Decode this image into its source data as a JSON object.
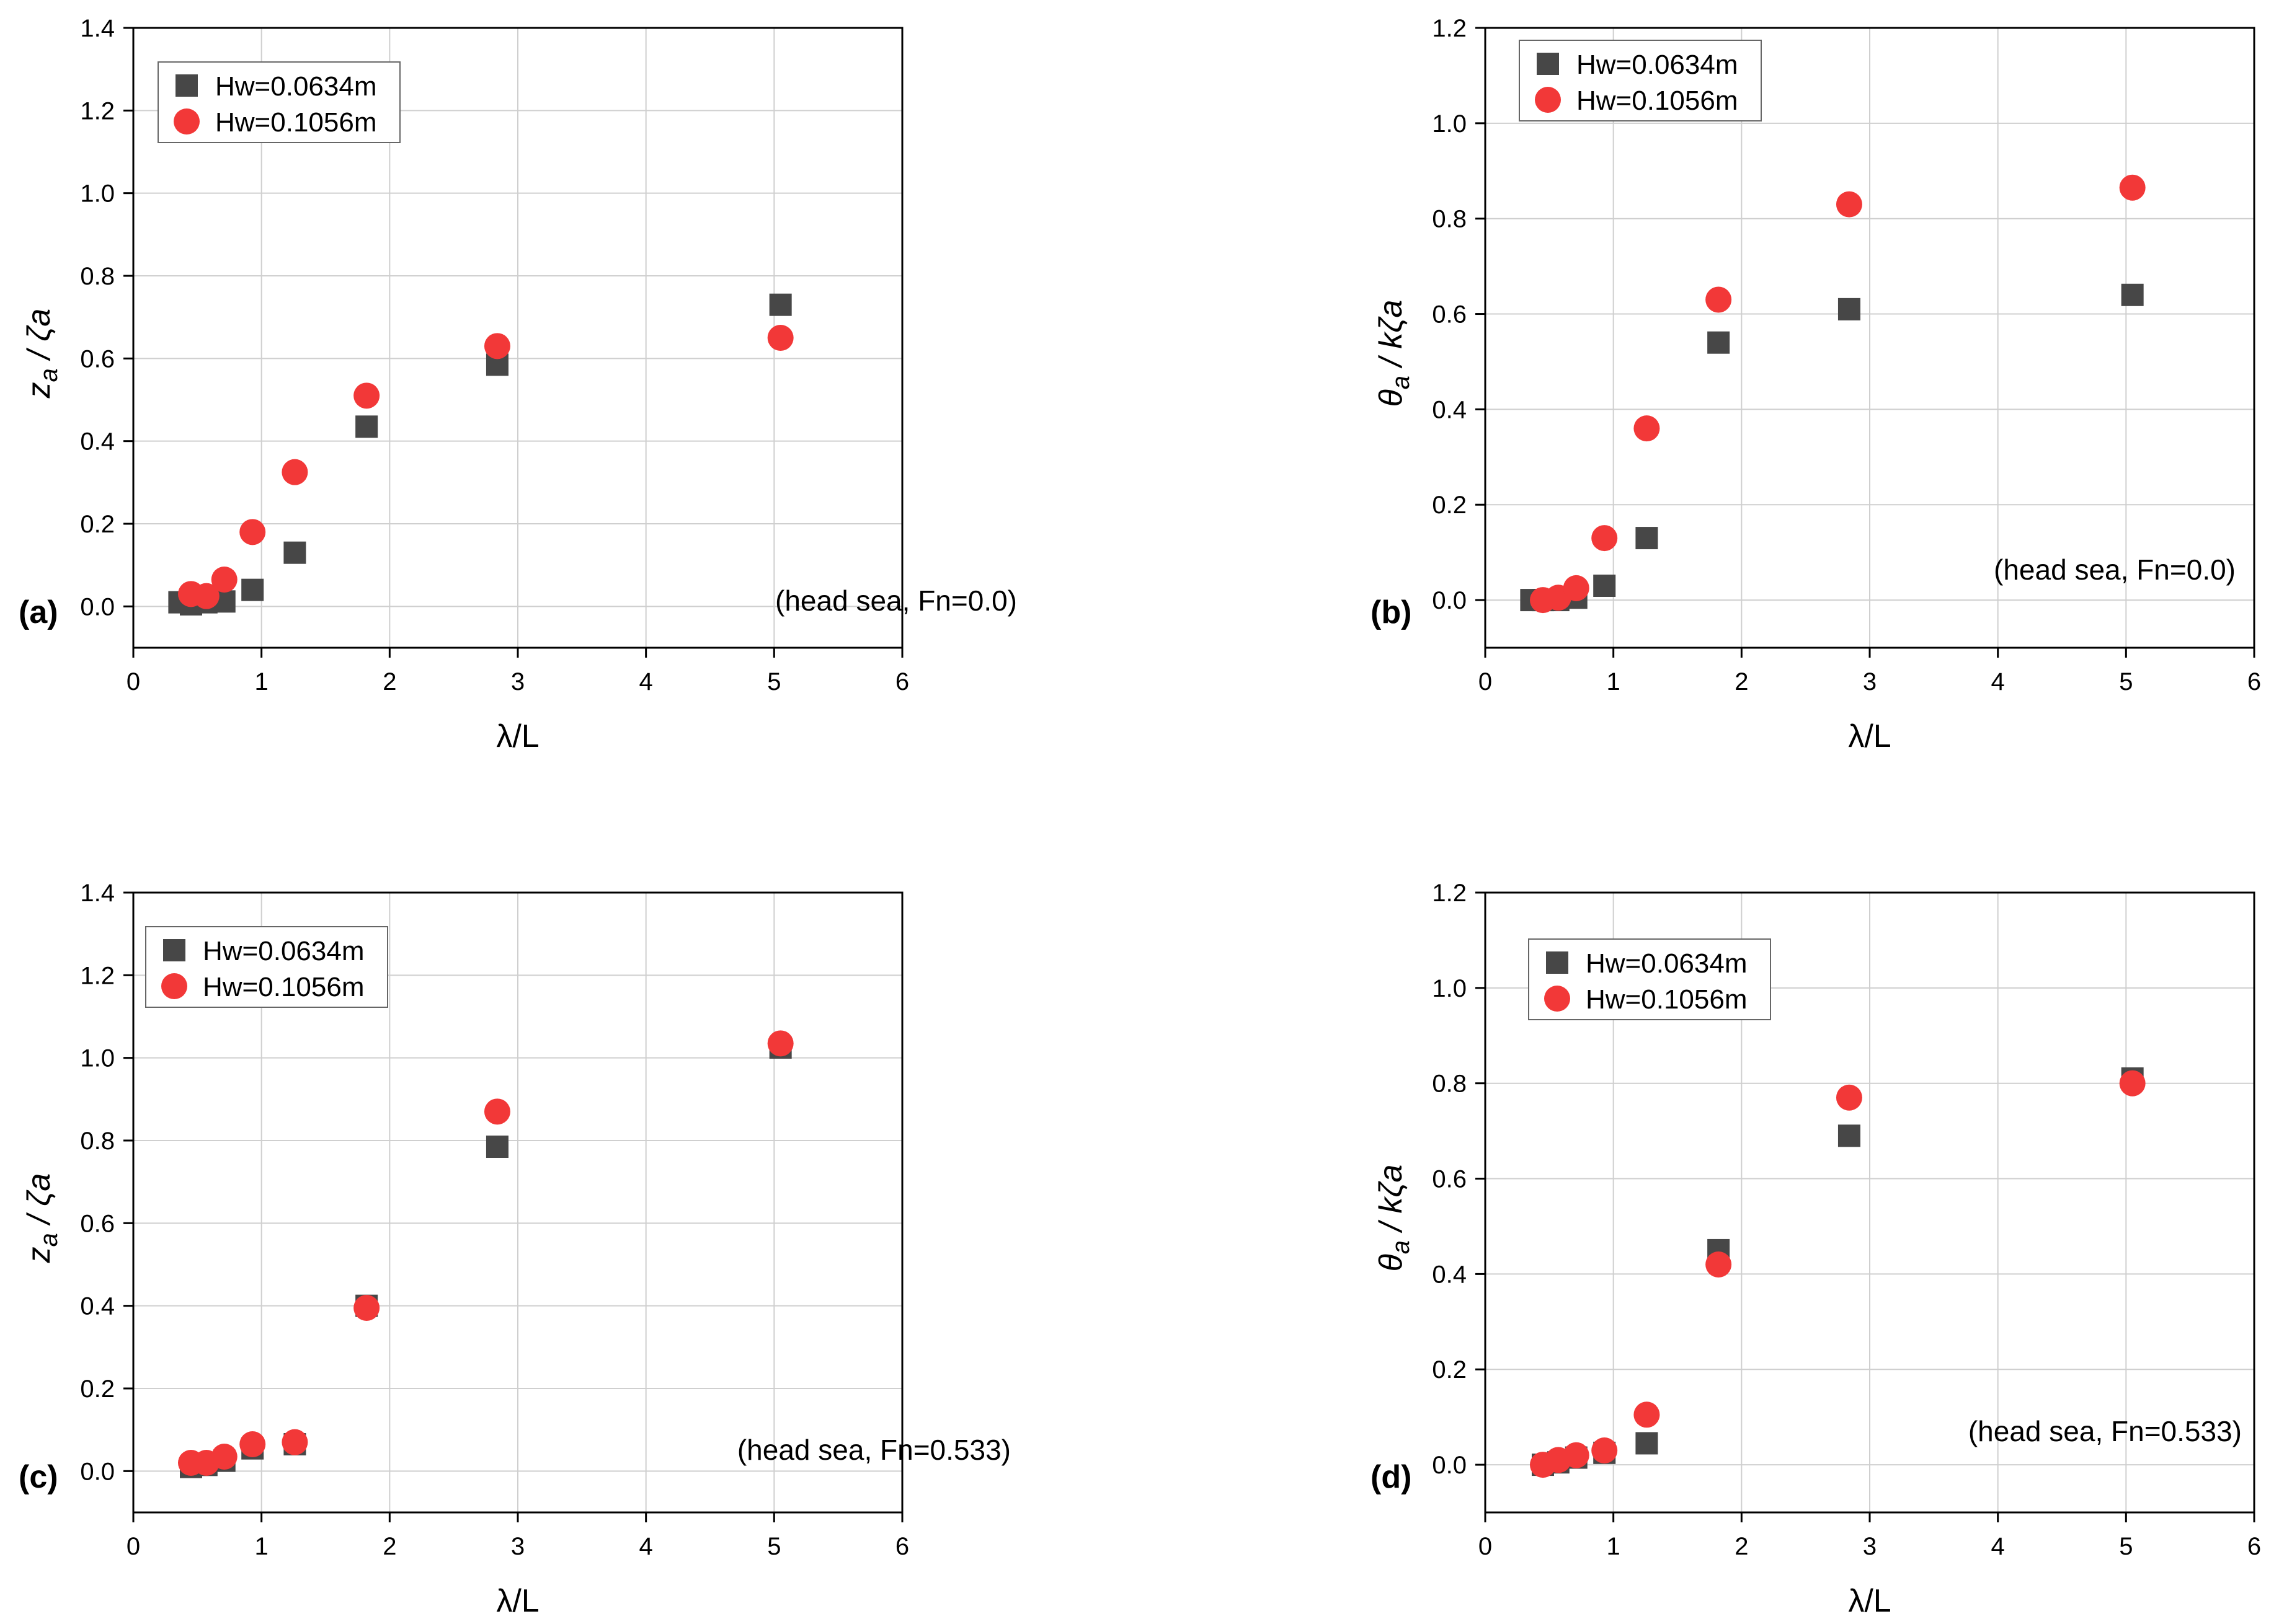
{
  "colors": {
    "series_a": "#474747",
    "series_b": "#f23838",
    "grid": "#cfcfcf",
    "axis": "#000000"
  },
  "chart_data": [
    {
      "type": "scatter",
      "panel_tag": "(a)",
      "annotation": "(head sea, Fn=0.0)",
      "xlabel": "λ/L",
      "ylabel_main": "z",
      "ylabel_sub": "a",
      "ylabel_tail": " / ζa",
      "xlim": [
        0,
        6
      ],
      "ylim": [
        -0.1,
        1.4
      ],
      "xticks": [
        0,
        1,
        2,
        3,
        4,
        5,
        6
      ],
      "xtick_labels": [
        "0",
        "1",
        "2",
        "3",
        "4",
        "5",
        "6"
      ],
      "yticks": [
        0,
        0.2,
        0.4,
        0.6,
        0.8,
        1.0,
        1.2,
        1.4
      ],
      "ytick_labels": [
        "0.0",
        "0.2",
        "0.4",
        "0.6",
        "0.8",
        "1.0",
        "1.2",
        "1.4"
      ],
      "legend_position": "top-left",
      "series": [
        {
          "name": "Hw=0.0634m",
          "marker": "square",
          "x": [
            0.36,
            0.45,
            0.57,
            0.71,
            0.93,
            1.26,
            1.82,
            2.84,
            5.05
          ],
          "y": [
            0.01,
            0.005,
            0.01,
            0.012,
            0.04,
            0.13,
            0.435,
            0.585,
            0.73
          ]
        },
        {
          "name": "Hw=0.1056m",
          "marker": "circle",
          "x": [
            0.45,
            0.57,
            0.71,
            0.93,
            1.26,
            1.82,
            2.84,
            5.05
          ],
          "y": [
            0.03,
            0.025,
            0.065,
            0.18,
            0.325,
            0.51,
            0.63,
            0.65
          ]
        }
      ]
    },
    {
      "type": "scatter",
      "panel_tag": "(b)",
      "annotation": "(head sea, Fn=0.0)",
      "xlabel": "λ/L",
      "ylabel_main": "θ",
      "ylabel_sub": "a",
      "ylabel_tail": " / kζa",
      "xlim": [
        0,
        6
      ],
      "ylim": [
        -0.1,
        1.2
      ],
      "xticks": [
        0,
        1,
        2,
        3,
        4,
        5,
        6
      ],
      "xtick_labels": [
        "0",
        "1",
        "2",
        "3",
        "4",
        "5",
        "6"
      ],
      "yticks": [
        0,
        0.2,
        0.4,
        0.6,
        0.8,
        1.0,
        1.2
      ],
      "ytick_labels": [
        "0.0",
        "0.2",
        "0.4",
        "0.6",
        "0.8",
        "1.0",
        "1.2"
      ],
      "legend_position": "top-left",
      "series": [
        {
          "name": "Hw=0.0634m",
          "marker": "square",
          "x": [
            0.36,
            0.45,
            0.57,
            0.71,
            0.93,
            1.26,
            1.82,
            2.84,
            5.05
          ],
          "y": [
            0.0,
            0.0,
            0.0,
            0.005,
            0.03,
            0.13,
            0.54,
            0.61,
            0.64
          ]
        },
        {
          "name": "Hw=0.1056m",
          "marker": "circle",
          "x": [
            0.45,
            0.57,
            0.71,
            0.93,
            1.26,
            1.82,
            2.84,
            5.05
          ],
          "y": [
            0.0,
            0.005,
            0.025,
            0.13,
            0.36,
            0.63,
            0.83,
            0.865
          ]
        }
      ]
    },
    {
      "type": "scatter",
      "panel_tag": "(c)",
      "annotation": "(head sea, Fn=0.533)",
      "xlabel": "λ/L",
      "ylabel_main": "z",
      "ylabel_sub": "a",
      "ylabel_tail": " / ζa",
      "xlim": [
        0,
        6
      ],
      "ylim": [
        -0.1,
        1.4
      ],
      "xticks": [
        0,
        1,
        2,
        3,
        4,
        5,
        6
      ],
      "xtick_labels": [
        "0",
        "1",
        "2",
        "3",
        "4",
        "5",
        "6"
      ],
      "yticks": [
        0,
        0.2,
        0.4,
        0.6,
        0.8,
        1.0,
        1.2,
        1.4
      ],
      "ytick_labels": [
        "0.0",
        "0.2",
        "0.4",
        "0.6",
        "0.8",
        "1.0",
        "1.2",
        "1.4"
      ],
      "legend_position": "top-left",
      "series": [
        {
          "name": "Hw=0.0634m",
          "marker": "square",
          "x": [
            0.45,
            0.57,
            0.71,
            0.93,
            1.26,
            1.82,
            2.84,
            5.05
          ],
          "y": [
            0.01,
            0.015,
            0.025,
            0.055,
            0.065,
            0.4,
            0.785,
            1.025
          ]
        },
        {
          "name": "Hw=0.1056m",
          "marker": "circle",
          "x": [
            0.45,
            0.57,
            0.71,
            0.93,
            1.26,
            1.82,
            2.84,
            5.05
          ],
          "y": [
            0.02,
            0.02,
            0.035,
            0.065,
            0.07,
            0.395,
            0.87,
            1.035
          ]
        }
      ]
    },
    {
      "type": "scatter",
      "panel_tag": "(d)",
      "annotation": "(head sea, Fn=0.533)",
      "xlabel": "λ/L",
      "ylabel_main": "θ",
      "ylabel_sub": "a",
      "ylabel_tail": " / kζa",
      "xlim": [
        0,
        6
      ],
      "ylim": [
        -0.1,
        1.2
      ],
      "xticks": [
        0,
        1,
        2,
        3,
        4,
        5,
        6
      ],
      "xtick_labels": [
        "0",
        "1",
        "2",
        "3",
        "4",
        "5",
        "6"
      ],
      "yticks": [
        0,
        0.2,
        0.4,
        0.6,
        0.8,
        1.0,
        1.2
      ],
      "ytick_labels": [
        "0.0",
        "0.2",
        "0.4",
        "0.6",
        "0.8",
        "1.0",
        "1.2"
      ],
      "legend_position": "top-left",
      "series": [
        {
          "name": "Hw=0.0634m",
          "marker": "square",
          "x": [
            0.45,
            0.57,
            0.71,
            0.93,
            1.26,
            1.82,
            2.84,
            5.05
          ],
          "y": [
            0.0,
            0.005,
            0.015,
            0.025,
            0.045,
            0.45,
            0.69,
            0.81
          ]
        },
        {
          "name": "Hw=0.1056m",
          "marker": "circle",
          "x": [
            0.45,
            0.57,
            0.71,
            0.93,
            1.26,
            1.82,
            2.84,
            5.05
          ],
          "y": [
            0.0,
            0.01,
            0.02,
            0.03,
            0.105,
            0.42,
            0.77,
            0.8
          ]
        }
      ]
    }
  ]
}
